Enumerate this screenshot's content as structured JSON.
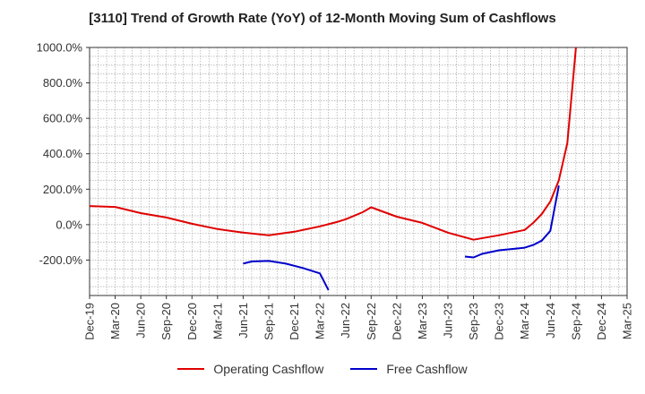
{
  "chart_data": {
    "type": "line",
    "title": "[3110]  Trend of Growth Rate (YoY) of 12-Month Moving Sum of Cashflows",
    "xlabel": "",
    "ylabel": "",
    "ylim": [
      -400,
      1000
    ],
    "yticks": [
      1000,
      800,
      600,
      400,
      200,
      0,
      -200
    ],
    "ytick_labels": [
      "1000.0%",
      "800.0%",
      "600.0%",
      "400.0%",
      "200.0%",
      "0.0%",
      "-200.0%"
    ],
    "x_start": "Dec-19",
    "x_months": 63,
    "xticks": [
      "Dec-19",
      "Mar-20",
      "Jun-20",
      "Sep-20",
      "Dec-20",
      "Mar-21",
      "Jun-21",
      "Sep-21",
      "Dec-21",
      "Mar-22",
      "Jun-22",
      "Sep-22",
      "Dec-22",
      "Mar-23",
      "Jun-23",
      "Sep-23",
      "Dec-23",
      "Mar-24",
      "Jun-24",
      "Sep-24",
      "Dec-24",
      "Mar-25"
    ],
    "grid": true,
    "legend_position": "bottom",
    "series": [
      {
        "name": "Operating Cashflow",
        "color": "#e00000",
        "points": [
          [
            "Dec-19",
            105
          ],
          [
            "Mar-20",
            100
          ],
          [
            "Jun-20",
            65
          ],
          [
            "Sep-20",
            40
          ],
          [
            "Dec-20",
            5
          ],
          [
            "Mar-21",
            -25
          ],
          [
            "Jun-21",
            -45
          ],
          [
            "Sep-21",
            -60
          ],
          [
            "Dec-21",
            -40
          ],
          [
            "Mar-22",
            -10
          ],
          [
            "May-22",
            15
          ],
          [
            "Jun-22",
            30
          ],
          [
            "Aug-22",
            70
          ],
          [
            "Sep-22",
            98
          ],
          [
            "Dec-22",
            45
          ],
          [
            "Mar-23",
            10
          ],
          [
            "Jun-23",
            -45
          ],
          [
            "Sep-23",
            -85
          ],
          [
            "Dec-23",
            -60
          ],
          [
            "Mar-24",
            -30
          ],
          [
            "Apr-24",
            10
          ],
          [
            "May-24",
            60
          ],
          [
            "Jun-24",
            130
          ],
          [
            "Jul-24",
            250
          ],
          [
            "Aug-24",
            460
          ],
          [
            "Sep-24",
            1000
          ]
        ]
      },
      {
        "name": "Free Cashflow",
        "color": "#0000cc",
        "points": [
          [
            "Jun-21",
            -220
          ],
          [
            "Jul-21",
            -208
          ],
          [
            "Sep-21",
            -205
          ],
          [
            "Nov-21",
            -220
          ],
          [
            "Jan-22",
            -245
          ],
          [
            "Mar-22",
            -275
          ],
          [
            "Apr-22",
            -370
          ],
          [
            "Aug-23",
            -180
          ],
          [
            "Sep-23",
            -185
          ],
          [
            "Oct-23",
            -165
          ],
          [
            "Nov-23",
            -155
          ],
          [
            "Dec-23",
            -145
          ],
          [
            "Feb-24",
            -135
          ],
          [
            "Mar-24",
            -130
          ],
          [
            "Apr-24",
            -115
          ],
          [
            "May-24",
            -90
          ],
          [
            "Jun-24",
            -35
          ],
          [
            "Jul-24",
            220
          ]
        ]
      }
    ]
  }
}
